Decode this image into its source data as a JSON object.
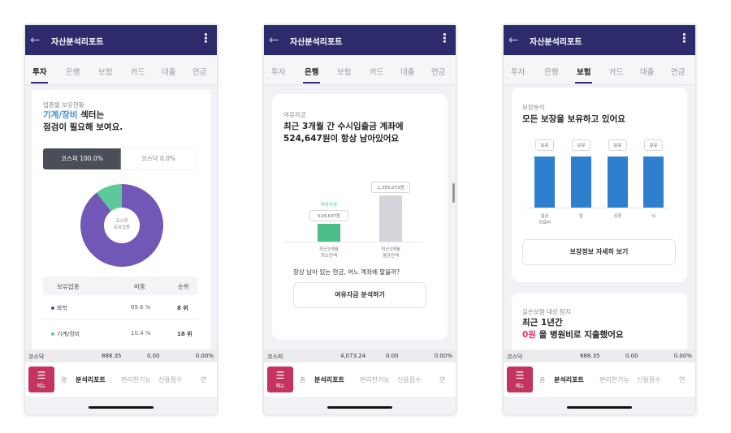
{
  "header": {
    "title": "자산분석리포트",
    "back_icon": "arrow-left-icon",
    "more_icon": "kebab-icon"
  },
  "tabs": [
    "투자",
    "은행",
    "보험",
    "카드",
    "대출",
    "연금"
  ],
  "bottom_nav": {
    "menu_label": "메뉴",
    "items": [
      "홈",
      "분석리포트",
      "편리한기능",
      "신용점수",
      "연"
    ]
  },
  "colors": {
    "header": "#2d2b6b",
    "menu": "#c4345f",
    "donut_main": "#7157b6",
    "donut_minor": "#5ec89a",
    "bank_min": "#4dbd8a",
    "bank_avg": "#d5d6db",
    "insurance_bar": "#2f7fcf",
    "highlight_blue": "#3b8fd8",
    "highlight_pink": "#e8336b"
  },
  "screens": [
    {
      "active_tab": 0,
      "ticker": {
        "name": "코스닥",
        "value": "888.35",
        "change": "0.00",
        "rate": "0.00%"
      },
      "section": "업종별 보유현황",
      "highlight": "기계/장비",
      "headline_rest": " 섹터는",
      "headline2": "점검이 필요해 보여요.",
      "toggle": [
        "코스피 100.0%",
        "코스닥 0.0%"
      ],
      "donut_center": [
        "코스피",
        "보유업종"
      ],
      "table": {
        "headers": [
          "보유업종",
          "비중",
          "순위"
        ],
        "rows": [
          {
            "name": "화학",
            "share": "89.6 %",
            "rank": "8 위",
            "share_value": 89.6
          },
          {
            "name": "기계/장비",
            "share": "10.4 %",
            "rank": "18 위",
            "share_value": 10.4
          }
        ]
      }
    },
    {
      "active_tab": 1,
      "ticker": {
        "name": "코스피",
        "value": "4,073.24",
        "change": "0.00",
        "rate": "0.00%"
      },
      "section": "여유자금",
      "headline1": "최근 3개월 간 수시입출금 계좌에",
      "headline2": "524,647원이 항상 남아있어요",
      "bars": [
        {
          "tag": "여유자금",
          "value_label": "524,647원",
          "label": [
            "최근3개월",
            "최소잔액"
          ],
          "value": 524647
        },
        {
          "value_label": "1,355,073원",
          "label": [
            "최근3개월",
            "평균잔액"
          ],
          "value": 1355073
        }
      ],
      "question": "항상 남아 있는 현금, 어느 계좌에 맡을까?",
      "button": "여유자금 분석하기"
    },
    {
      "active_tab": 2,
      "ticker": {
        "name": "코스닥",
        "value": "888.35",
        "change": "0.00",
        "rate": "0.00%"
      },
      "section": "보장분석",
      "headline": "모든 보장을 보유하고 있어요",
      "bars": [
        {
          "tag": "보유",
          "label": [
            "실손",
            "의료비"
          ]
        },
        {
          "tag": "보유",
          "label": [
            "암"
          ]
        },
        {
          "tag": "보유",
          "label": [
            "심장"
          ]
        },
        {
          "tag": "보유",
          "label": [
            "뇌"
          ]
        }
      ],
      "button": "보장정보 자세히 보기",
      "section2": "실손보험 대상 탐지",
      "headline2": "최근 1년간",
      "amount": "0원",
      "headline3": " 을 병원비로 지출했어요"
    }
  ]
}
